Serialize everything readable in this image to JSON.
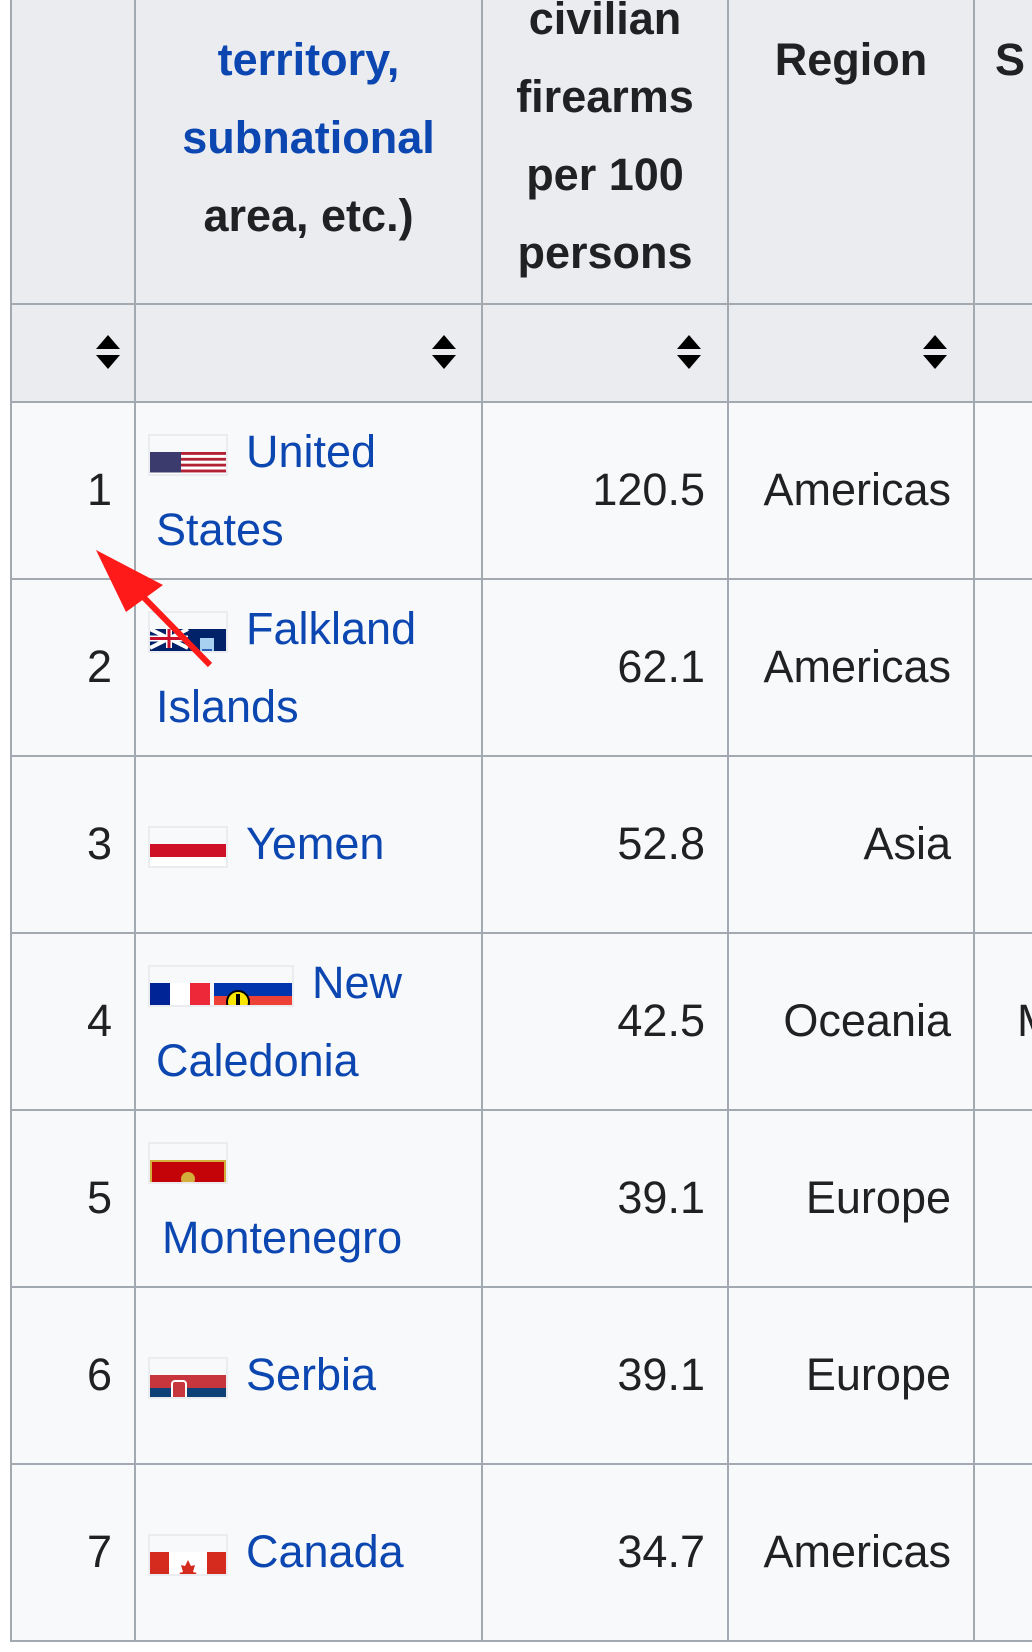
{
  "table": {
    "headers": {
      "country_lines": [
        "territory,",
        "subnational",
        "area, etc.)"
      ],
      "firearms_lines": [
        "civilian",
        "firearms",
        "per 100",
        "persons"
      ],
      "region": "Region",
      "next_column_fragment": "S"
    },
    "rows": [
      {
        "rank": "1",
        "country_lines": [
          "United",
          "States"
        ],
        "flag": "united-states-flag",
        "value": "120.5",
        "region": "Americas",
        "next": ""
      },
      {
        "rank": "2",
        "country_lines": [
          "Falkland",
          "Islands"
        ],
        "flag": "falkland-islands-flag",
        "value": "62.1",
        "region": "Americas",
        "next": ""
      },
      {
        "rank": "3",
        "country_lines": [
          "Yemen"
        ],
        "flag": "yemen-flag",
        "value": "52.8",
        "region": "Asia",
        "next": ""
      },
      {
        "rank": "4",
        "country_lines": [
          "New",
          "Caledonia"
        ],
        "flag": "new-caledonia-flag",
        "value": "42.5",
        "region": "Oceania",
        "next": "M"
      },
      {
        "rank": "5",
        "country_lines": [
          "",
          "Montenegro"
        ],
        "flag": "montenegro-flag",
        "value": "39.1",
        "region": "Europe",
        "next": ""
      },
      {
        "rank": "6",
        "country_lines": [
          "Serbia"
        ],
        "flag": "serbia-flag",
        "value": "39.1",
        "region": "Europe",
        "next": ""
      },
      {
        "rank": "7",
        "country_lines": [
          "Canada"
        ],
        "flag": "canada-flag",
        "value": "34.7",
        "region": "Americas",
        "next": ""
      }
    ]
  },
  "colors": {
    "link": "#0b46b1",
    "header_bg": "#eaecf0",
    "cell_bg": "#f8f9fa",
    "border": "#a2a9b1",
    "annotation_arrow": "#ff0000"
  },
  "annotation": {
    "icon": "red-arrow-icon"
  }
}
